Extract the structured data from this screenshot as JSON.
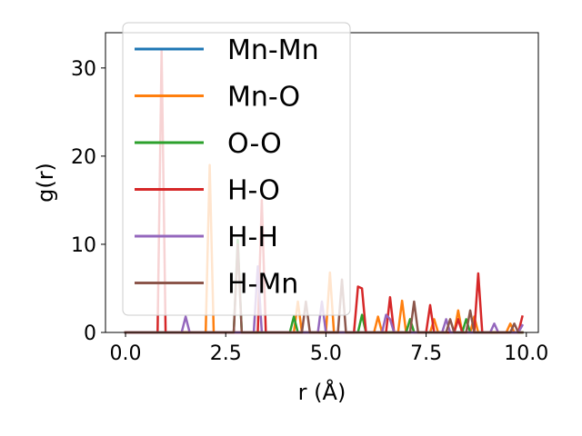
{
  "chart_data": {
    "type": "line",
    "xlabel": "r (Å)",
    "ylabel": "g(r)",
    "xlim": [
      -0.5,
      10.3
    ],
    "ylim": [
      0,
      34
    ],
    "xticks": [
      0.0,
      2.5,
      5.0,
      7.5,
      10.0
    ],
    "xtick_labels": [
      "0.0",
      "2.5",
      "5.0",
      "7.5",
      "10.0"
    ],
    "yticks": [
      0,
      10,
      20,
      30
    ],
    "ytick_labels": [
      "0",
      "10",
      "20",
      "30"
    ],
    "grid": false,
    "legend": {
      "placement": "top-left"
    },
    "series": [
      {
        "name": "Mn-Mn",
        "color": "#1f77b4",
        "points": [
          [
            0,
            0
          ],
          [
            9.9,
            0
          ]
        ]
      },
      {
        "name": "Mn-O",
        "color": "#ff7f0e",
        "points": [
          [
            0,
            0
          ],
          [
            1.9,
            0
          ],
          [
            2.0,
            0
          ],
          [
            2.1,
            19
          ],
          [
            2.2,
            0
          ],
          [
            4.2,
            0
          ],
          [
            4.3,
            3.5
          ],
          [
            4.4,
            0
          ],
          [
            5.0,
            0
          ],
          [
            5.1,
            6.8
          ],
          [
            5.2,
            0
          ],
          [
            6.2,
            0
          ],
          [
            6.3,
            1.8
          ],
          [
            6.4,
            0
          ],
          [
            6.8,
            0
          ],
          [
            6.9,
            3.6
          ],
          [
            7.0,
            0
          ],
          [
            7.1,
            1.5
          ],
          [
            7.2,
            0
          ],
          [
            7.6,
            0
          ],
          [
            7.7,
            1.5
          ],
          [
            7.8,
            0
          ],
          [
            8.2,
            0
          ],
          [
            8.3,
            2.5
          ],
          [
            8.4,
            0
          ],
          [
            8.6,
            0
          ],
          [
            8.7,
            1.8
          ],
          [
            8.8,
            0
          ],
          [
            9.5,
            0
          ],
          [
            9.6,
            1.0
          ],
          [
            9.7,
            0
          ],
          [
            9.9,
            0
          ]
        ]
      },
      {
        "name": "O-O",
        "color": "#2ca02c",
        "points": [
          [
            0,
            0
          ],
          [
            2.7,
            0
          ],
          [
            2.8,
            10.5
          ],
          [
            2.9,
            0
          ],
          [
            4.1,
            0
          ],
          [
            4.2,
            1.8
          ],
          [
            4.3,
            0
          ],
          [
            5.8,
            0
          ],
          [
            5.9,
            2.0
          ],
          [
            6.0,
            0
          ],
          [
            7.0,
            0
          ],
          [
            7.1,
            1.5
          ],
          [
            7.2,
            0
          ],
          [
            8.4,
            0
          ],
          [
            8.5,
            1.5
          ],
          [
            8.6,
            0
          ],
          [
            9.9,
            0
          ]
        ]
      },
      {
        "name": "H-O",
        "color": "#d62728",
        "points": [
          [
            0,
            0
          ],
          [
            0.8,
            0
          ],
          [
            0.9,
            32
          ],
          [
            1.0,
            0
          ],
          [
            3.3,
            0
          ],
          [
            3.4,
            15
          ],
          [
            3.5,
            0
          ],
          [
            5.7,
            0
          ],
          [
            5.8,
            5.2
          ],
          [
            5.9,
            5.0
          ],
          [
            6.0,
            0
          ],
          [
            6.5,
            0
          ],
          [
            6.6,
            4.0
          ],
          [
            6.7,
            0
          ],
          [
            7.5,
            0
          ],
          [
            7.6,
            3.1
          ],
          [
            7.7,
            0
          ],
          [
            8.2,
            0
          ],
          [
            8.3,
            1.5
          ],
          [
            8.4,
            0
          ],
          [
            8.7,
            0
          ],
          [
            8.8,
            6.7
          ],
          [
            8.9,
            0
          ],
          [
            9.8,
            0
          ],
          [
            9.9,
            1.8
          ]
        ]
      },
      {
        "name": "H-H",
        "color": "#9467bd",
        "points": [
          [
            0,
            0
          ],
          [
            1.4,
            0
          ],
          [
            1.5,
            1.8
          ],
          [
            1.6,
            0
          ],
          [
            3.2,
            0
          ],
          [
            3.3,
            7.5
          ],
          [
            3.4,
            0
          ],
          [
            4.8,
            0
          ],
          [
            4.9,
            3.5
          ],
          [
            5.0,
            0
          ],
          [
            6.4,
            0
          ],
          [
            6.5,
            2.0
          ],
          [
            6.6,
            1.5
          ],
          [
            6.7,
            0
          ],
          [
            7.9,
            0
          ],
          [
            8.0,
            1.5
          ],
          [
            8.1,
            0
          ],
          [
            9.1,
            0
          ],
          [
            9.2,
            1.0
          ],
          [
            9.3,
            0
          ],
          [
            9.8,
            0
          ],
          [
            9.9,
            0.8
          ]
        ]
      },
      {
        "name": "H-Mn",
        "color": "#8c564b",
        "points": [
          [
            0,
            0
          ],
          [
            2.7,
            0
          ],
          [
            2.8,
            10
          ],
          [
            2.9,
            0
          ],
          [
            4.4,
            0
          ],
          [
            4.5,
            3.5
          ],
          [
            4.6,
            0
          ],
          [
            5.3,
            0
          ],
          [
            5.4,
            6.0
          ],
          [
            5.5,
            0
          ],
          [
            7.1,
            0
          ],
          [
            7.2,
            3.5
          ],
          [
            7.3,
            0
          ],
          [
            8.0,
            0
          ],
          [
            8.1,
            1.5
          ],
          [
            8.2,
            0
          ],
          [
            8.5,
            0
          ],
          [
            8.6,
            2.5
          ],
          [
            8.7,
            0
          ],
          [
            9.6,
            0
          ],
          [
            9.7,
            1.0
          ],
          [
            9.8,
            0
          ],
          [
            9.9,
            0
          ]
        ]
      }
    ]
  }
}
